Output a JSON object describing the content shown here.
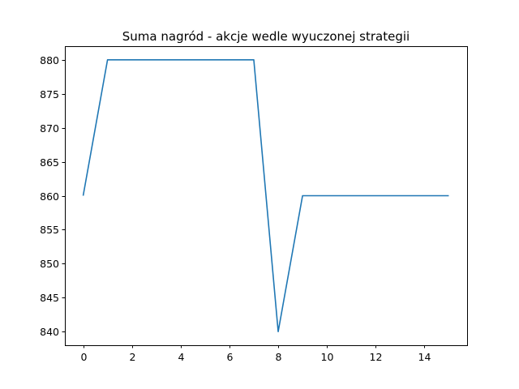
{
  "chart_data": {
    "type": "line",
    "title": "Suma nagród - akcje wedle wyuczonej strategii",
    "xlabel": "",
    "ylabel": "",
    "xlim": [
      -0.75,
      15.75
    ],
    "ylim": [
      838,
      882
    ],
    "xticks": [
      0,
      2,
      4,
      6,
      8,
      10,
      12,
      14
    ],
    "xtick_labels": [
      "0",
      "2",
      "4",
      "6",
      "8",
      "10",
      "12",
      "14"
    ],
    "yticks": [
      840,
      845,
      850,
      855,
      860,
      865,
      870,
      875,
      880
    ],
    "ytick_labels": [
      "840",
      "845",
      "850",
      "855",
      "860",
      "865",
      "870",
      "875",
      "880"
    ],
    "grid": false,
    "line_color": "#1f77b4",
    "series": [
      {
        "x": [
          0,
          1,
          2,
          3,
          4,
          5,
          6,
          7,
          8,
          9,
          10,
          11,
          12,
          13,
          14,
          15
        ],
        "values": [
          860,
          880,
          880,
          880,
          880,
          880,
          880,
          880,
          840,
          860,
          860,
          860,
          860,
          860,
          860,
          860
        ]
      }
    ]
  }
}
